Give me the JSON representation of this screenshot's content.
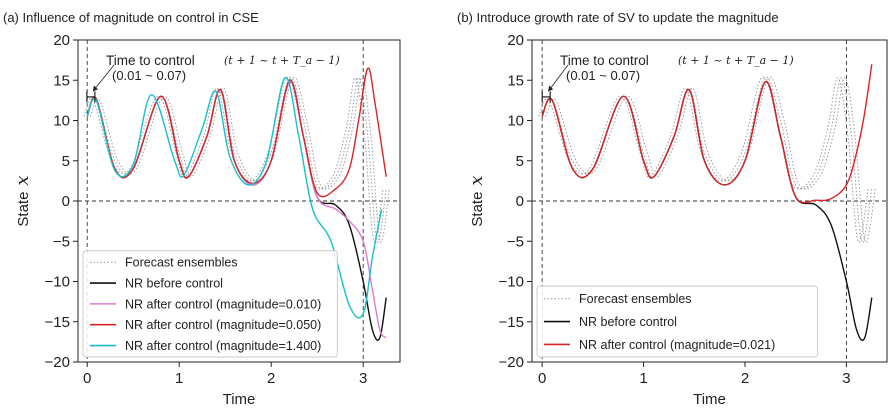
{
  "chart_data": [
    {
      "type": "line",
      "title": "(a) Influence of magnitude on control in CSE",
      "xlabel": "Time",
      "ylabel": "State",
      "ylabel_symbol": "x",
      "xlim": [
        -0.1,
        3.4
      ],
      "ylim": [
        -20,
        20
      ],
      "xticks": [
        "0",
        "1",
        "2",
        "3"
      ],
      "yticks": [
        "20",
        "15",
        "10",
        "5",
        "0",
        "−5",
        "−10",
        "−15",
        "−20"
      ],
      "vlines": [
        0,
        3
      ],
      "hline": 0,
      "annotation": {
        "text": "Time to control",
        "range_formula": "(t + 1 ~ t + T_a − 1)",
        "range_values": "(0.01 ~ 0.07)",
        "at": [
          0.04,
          12
        ]
      },
      "legend": {
        "position": "lower-left",
        "entries": [
          "Forecast ensembles",
          "NR before control",
          "NR after control (magnitude=0.010)",
          "NR after control (magnitude=0.050)",
          "NR after control (magnitude=1.400)"
        ]
      },
      "series": [
        {
          "name": "Forecast ensembles",
          "color": "#9a9a9a",
          "style": "dotted",
          "members": 3,
          "x": [
            0,
            0.1,
            0.3,
            0.5,
            0.8,
            1.0,
            1.1,
            1.3,
            1.45,
            1.6,
            1.8,
            2.0,
            2.2,
            2.35,
            2.5,
            2.7,
            2.85,
            2.95,
            3.05,
            3.15,
            3.25
          ],
          "y": [
            10.5,
            12.5,
            5,
            4,
            13,
            6,
            3,
            8,
            14,
            6,
            2.5,
            6,
            15.3,
            10,
            2,
            3,
            9,
            15.3,
            8,
            -5,
            1.5
          ]
        },
        {
          "name": "NR before control",
          "color": "#111111",
          "style": "solid",
          "x": [
            0,
            0.1,
            0.3,
            0.5,
            0.8,
            1.0,
            1.1,
            1.3,
            1.45,
            1.6,
            1.8,
            2.0,
            2.2,
            2.35,
            2.5,
            2.7,
            2.85,
            3.0,
            3.1,
            3.18,
            3.25
          ],
          "y": [
            10.5,
            12.5,
            4,
            4,
            13,
            5,
            3,
            8,
            13.8,
            5,
            2,
            5,
            14.8,
            8,
            0.5,
            -0.5,
            -3,
            -10,
            -16,
            -17,
            -12
          ]
        },
        {
          "name": "NR after control (magnitude=0.010)",
          "color": "#e07ad0",
          "style": "solid",
          "x": [
            0,
            0.1,
            0.3,
            0.5,
            0.8,
            1.0,
            1.1,
            1.3,
            1.45,
            1.6,
            1.8,
            2.0,
            2.2,
            2.35,
            2.5,
            2.7,
            2.85,
            3.0,
            3.1,
            3.18,
            3.25
          ],
          "y": [
            10.5,
            12.5,
            4,
            4,
            13,
            5,
            3,
            8,
            13.8,
            5,
            2,
            5,
            14.8,
            8,
            0.5,
            -1,
            -2.5,
            -5,
            -11,
            -16,
            -17
          ]
        },
        {
          "name": "NR after control (magnitude=0.050)",
          "color": "#d62728",
          "style": "solid",
          "x": [
            0,
            0.1,
            0.3,
            0.5,
            0.8,
            1.0,
            1.1,
            1.3,
            1.45,
            1.6,
            1.8,
            2.0,
            2.2,
            2.35,
            2.5,
            2.7,
            2.85,
            2.95,
            3.05,
            3.13,
            3.25
          ],
          "y": [
            10.5,
            12.7,
            4,
            4,
            13,
            5,
            3,
            8,
            13.8,
            5,
            2.2,
            5,
            15,
            8,
            1,
            1.5,
            4,
            10,
            16.5,
            12,
            3
          ]
        },
        {
          "name": "NR after control (magnitude=1.400)",
          "color": "#17becf",
          "style": "solid",
          "x": [
            0,
            0.1,
            0.3,
            0.5,
            0.7,
            0.95,
            1.05,
            1.25,
            1.4,
            1.55,
            1.75,
            1.95,
            2.15,
            2.3,
            2.45,
            2.65,
            2.85,
            3.0,
            3.1,
            3.2
          ],
          "y": [
            10.5,
            12.5,
            3.8,
            4.5,
            13.2,
            5,
            3.2,
            9,
            13.6,
            5.5,
            2,
            5,
            15.3,
            8,
            -1,
            -5,
            -13,
            -14,
            -7,
            -1
          ]
        }
      ]
    },
    {
      "type": "line",
      "title": "(b) Introduce growth rate of SV to update the magnitude",
      "xlabel": "Time",
      "ylabel": "State",
      "ylabel_symbol": "x",
      "xlim": [
        -0.1,
        3.4
      ],
      "ylim": [
        -20,
        20
      ],
      "xticks": [
        "0",
        "1",
        "2",
        "3"
      ],
      "yticks": [
        "20",
        "15",
        "10",
        "5",
        "0",
        "−5",
        "−10",
        "−15",
        "−20"
      ],
      "vlines": [
        0,
        3
      ],
      "hline": 0,
      "annotation": {
        "text": "Time to control",
        "range_formula": "(t + 1 ~ t + T_a − 1)",
        "range_values": "(0.01 ~ 0.07)",
        "at": [
          0.04,
          12
        ]
      },
      "legend": {
        "position": "lower-left",
        "entries": [
          "Forecast ensembles",
          "NR before control",
          "NR after control (magnitude=0.021)"
        ]
      },
      "series": [
        {
          "name": "Forecast ensembles",
          "color": "#9a9a9a",
          "style": "dotted",
          "members": 3,
          "x": [
            0,
            0.1,
            0.3,
            0.5,
            0.8,
            1.0,
            1.1,
            1.3,
            1.45,
            1.6,
            1.8,
            2.0,
            2.2,
            2.35,
            2.5,
            2.7,
            2.85,
            2.95,
            3.05,
            3.15,
            3.25
          ],
          "y": [
            10.5,
            12.5,
            5,
            4,
            13,
            6,
            3,
            8,
            14,
            6,
            2.5,
            6,
            15.3,
            10,
            2,
            3,
            9,
            15.3,
            8,
            -5,
            1.5
          ]
        },
        {
          "name": "NR before control",
          "color": "#111111",
          "style": "solid",
          "x": [
            0,
            0.1,
            0.3,
            0.5,
            0.8,
            1.0,
            1.1,
            1.3,
            1.45,
            1.6,
            1.8,
            2.0,
            2.2,
            2.35,
            2.5,
            2.7,
            2.85,
            3.0,
            3.1,
            3.18,
            3.25
          ],
          "y": [
            10.5,
            12.5,
            4,
            4,
            13,
            5,
            3,
            8,
            13.8,
            5,
            2,
            5,
            14.8,
            8,
            0.5,
            -0.5,
            -3,
            -10,
            -16,
            -17,
            -12
          ]
        },
        {
          "name": "NR after control (magnitude=0.021)",
          "color": "#d62728",
          "style": "solid",
          "x": [
            0,
            0.1,
            0.3,
            0.5,
            0.8,
            1.0,
            1.1,
            1.3,
            1.45,
            1.6,
            1.8,
            2.0,
            2.2,
            2.35,
            2.5,
            2.7,
            2.85,
            3.0,
            3.1,
            3.18,
            3.25
          ],
          "y": [
            10.5,
            12.5,
            4,
            4,
            13,
            5,
            3,
            8,
            13.8,
            5,
            2,
            5,
            14.8,
            8,
            0.5,
            0.1,
            0.3,
            2,
            6,
            11,
            17
          ]
        }
      ]
    }
  ]
}
